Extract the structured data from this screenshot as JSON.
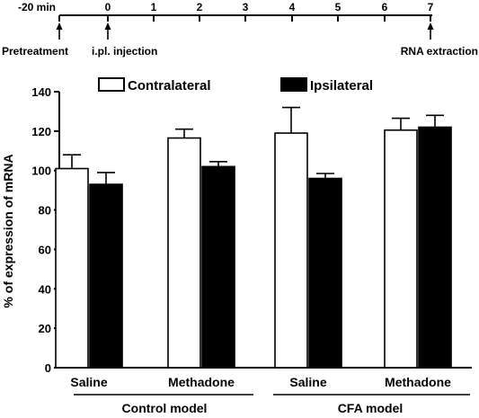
{
  "timeline": {
    "ticks": [
      "-20 min",
      "0",
      "1",
      "2",
      "3",
      "4",
      "5",
      "6",
      "7"
    ],
    "events": [
      "Pretreatment",
      "i.pl. injection",
      "RNA extraction"
    ]
  },
  "chart_data": {
    "type": "bar",
    "ylabel": "% of expression of mRNA",
    "ylim": [
      0,
      140
    ],
    "yticks": [
      0,
      20,
      40,
      60,
      80,
      100,
      120,
      140
    ],
    "categories": [
      "Saline",
      "Methadone",
      "Saline",
      "Methadone"
    ],
    "groups": [
      "Control model",
      "CFA model"
    ],
    "legend_position": "top",
    "series": [
      {
        "name": "Contralateral",
        "color": "#ffffff",
        "values": [
          101,
          116.5,
          119,
          120.5
        ],
        "errors": [
          7,
          4.5,
          13,
          6
        ]
      },
      {
        "name": "Ipsilateral",
        "color": "#000000",
        "values": [
          93,
          102,
          96,
          122
        ],
        "errors": [
          6,
          2.5,
          2.5,
          6
        ]
      }
    ],
    "grid": false
  }
}
